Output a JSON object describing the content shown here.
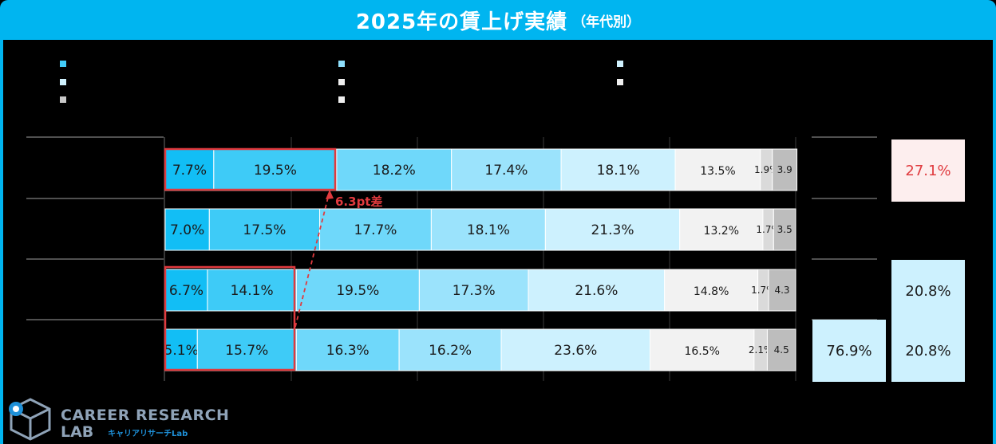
{
  "title": "2025年の賃上げ実績",
  "subtitle": "（年代別）",
  "legend_colors": [
    "#00B5F0",
    "#42CCF8",
    "#8EDFFC",
    "#CFF1FE",
    "#EFEFEF",
    "#C8C8C8"
  ],
  "chart_data": {
    "type": "bar",
    "orientation": "horizontal",
    "stacked": true,
    "rows": 4,
    "series": [
      {
        "color": "#12BEF5",
        "values": [
          7.7,
          7.0,
          6.7,
          5.1
        ]
      },
      {
        "color": "#3ECBF7",
        "values": [
          19.5,
          17.5,
          14.1,
          15.7
        ]
      },
      {
        "color": "#6FD8FA",
        "values": [
          18.2,
          17.7,
          19.5,
          16.3
        ]
      },
      {
        "color": "#9BE3FC",
        "values": [
          17.4,
          18.1,
          17.3,
          16.2
        ]
      },
      {
        "color": "#CDF1FE",
        "values": [
          18.1,
          21.3,
          21.6,
          23.6
        ]
      },
      {
        "color": "#F2F2F2",
        "values": [
          13.5,
          13.2,
          14.8,
          16.5
        ]
      },
      {
        "color": "#DADADA",
        "values": [
          1.9,
          1.7,
          1.7,
          2.1
        ]
      },
      {
        "color": "#BDBDBD",
        "values": [
          3.9,
          3.5,
          4.3,
          4.5
        ]
      }
    ],
    "value_labels": [
      [
        "7.7%",
        "19.5%",
        "18.2%",
        "17.4%",
        "18.1%",
        "13.5%",
        "1.9%",
        "3.9"
      ],
      [
        "7.0%",
        "17.5%",
        "17.7%",
        "18.1%",
        "21.3%",
        "13.2%",
        "1.7%",
        "3.5"
      ],
      [
        "6.7%",
        "14.1%",
        "19.5%",
        "17.3%",
        "21.6%",
        "14.8%",
        "1.7%",
        "4.3"
      ],
      [
        "5.1%",
        "15.7%",
        "16.3%",
        "16.2%",
        "23.6%",
        "16.5%",
        "2.1%",
        "4.5"
      ]
    ],
    "xlim": [
      0,
      100
    ],
    "right_column_1": [
      "",
      "",
      "",
      "76.9%"
    ],
    "right_column_2": [
      "27.1%",
      "",
      "20.8%",
      "20.8%"
    ],
    "annotation": "6.3pt差",
    "highlight_color": "#E03A3E"
  }
}
